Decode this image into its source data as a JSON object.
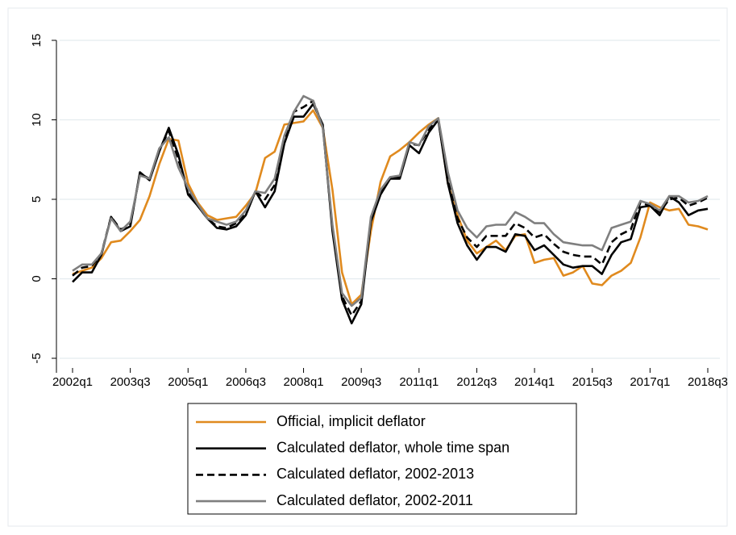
{
  "chart_data": {
    "type": "line",
    "categories": [
      "2002q1",
      null,
      null,
      null,
      null,
      null,
      "2003q3",
      null,
      null,
      null,
      null,
      null,
      "2005q1",
      null,
      null,
      null,
      null,
      null,
      "2006q3",
      null,
      null,
      null,
      null,
      null,
      "2008q1",
      null,
      null,
      null,
      null,
      null,
      "2009q3",
      null,
      null,
      null,
      null,
      null,
      "2011q1",
      null,
      null,
      null,
      null,
      null,
      "2012q3",
      null,
      null,
      null,
      null,
      null,
      "2014q1",
      null,
      null,
      null,
      null,
      null,
      "2015q3",
      null,
      null,
      null,
      null,
      null,
      "2017q1",
      null,
      null,
      null,
      null,
      null,
      "2018q3"
    ],
    "series": [
      {
        "name": "Official, implicit deflator",
        "color": "#e08a1e",
        "dashed": false,
        "values": [
          0.3,
          0.5,
          0.7,
          1.3,
          2.3,
          2.4,
          3.0,
          3.7,
          5.2,
          7.2,
          8.8,
          8.7,
          6.0,
          4.8,
          4.0,
          3.7,
          3.8,
          3.9,
          4.6,
          5.4,
          7.6,
          8.0,
          9.7,
          9.8,
          9.9,
          10.6,
          9.5,
          5.6,
          0.4,
          -1.6,
          -1.0,
          3.0,
          6.1,
          7.7,
          8.1,
          8.6,
          9.2,
          9.7,
          10.1,
          6.0,
          4.0,
          2.4,
          1.6,
          2.0,
          2.4,
          1.8,
          2.7,
          2.8,
          1.0,
          1.2,
          1.3,
          0.2,
          0.4,
          0.8,
          -0.3,
          -0.4,
          0.2,
          0.5,
          1.0,
          2.6,
          4.8,
          4.5,
          4.3,
          4.4,
          3.4,
          3.3,
          3.1
        ]
      },
      {
        "name": "Calculated deflator, whole time span",
        "color": "#000000",
        "dashed": false,
        "values": [
          -0.2,
          0.4,
          0.4,
          1.5,
          3.9,
          3.0,
          3.3,
          6.7,
          6.2,
          8.0,
          9.5,
          7.8,
          5.3,
          4.6,
          3.8,
          3.2,
          3.1,
          3.3,
          4.0,
          5.5,
          4.5,
          5.5,
          8.5,
          10.2,
          10.2,
          11.0,
          9.7,
          3.0,
          -1.3,
          -2.8,
          -1.6,
          3.6,
          5.3,
          6.3,
          6.3,
          8.4,
          7.9,
          9.2,
          10.0,
          6.0,
          3.5,
          2.1,
          1.2,
          2.0,
          2.0,
          1.7,
          2.8,
          2.7,
          1.8,
          2.1,
          1.5,
          0.9,
          0.7,
          0.8,
          0.8,
          0.3,
          1.5,
          2.3,
          2.5,
          4.5,
          4.6,
          4.0,
          5.2,
          4.8,
          4.0,
          4.3,
          4.4
        ]
      },
      {
        "name": "Calculated deflator, 2002-2013",
        "color": "#000000",
        "dashed": true,
        "values": [
          0.2,
          0.7,
          0.8,
          1.6,
          3.9,
          3.1,
          3.4,
          6.6,
          6.3,
          8.1,
          9.3,
          7.5,
          5.5,
          4.6,
          3.8,
          3.3,
          3.2,
          3.5,
          4.2,
          5.5,
          5.0,
          5.9,
          8.8,
          10.5,
          10.8,
          11.2,
          9.6,
          3.2,
          -1.1,
          -2.3,
          -1.4,
          3.7,
          5.5,
          6.4,
          6.4,
          8.5,
          8.4,
          9.4,
          10.0,
          6.2,
          3.8,
          2.6,
          2.0,
          2.7,
          2.7,
          2.7,
          3.5,
          3.2,
          2.6,
          2.8,
          2.2,
          1.7,
          1.5,
          1.4,
          1.4,
          0.9,
          2.3,
          2.8,
          3.1,
          4.8,
          4.6,
          4.2,
          5.0,
          5.1,
          4.6,
          4.8,
          5.1
        ]
      },
      {
        "name": "Calculated deflator, 2002-2011",
        "color": "#7f7f7f",
        "dashed": false,
        "values": [
          0.5,
          0.9,
          0.9,
          1.6,
          3.8,
          3.0,
          3.6,
          6.5,
          6.3,
          8.2,
          8.9,
          7.0,
          5.7,
          4.7,
          3.8,
          3.6,
          3.4,
          3.6,
          4.3,
          5.5,
          5.4,
          6.3,
          9.0,
          10.5,
          11.5,
          11.2,
          9.5,
          3.4,
          -0.9,
          -1.7,
          -1.2,
          3.9,
          5.6,
          6.4,
          6.5,
          8.6,
          8.4,
          9.6,
          10.1,
          6.7,
          4.3,
          3.2,
          2.6,
          3.3,
          3.4,
          3.4,
          4.2,
          3.9,
          3.5,
          3.5,
          2.8,
          2.3,
          2.2,
          2.1,
          2.1,
          1.8,
          3.2,
          3.4,
          3.6,
          4.9,
          4.7,
          4.3,
          5.2,
          5.2,
          4.8,
          4.9,
          5.2
        ]
      }
    ],
    "ylim": [
      -5,
      15
    ],
    "yticks": [
      -5,
      0,
      5,
      10,
      15
    ],
    "grid": true,
    "legend": "bottom"
  }
}
